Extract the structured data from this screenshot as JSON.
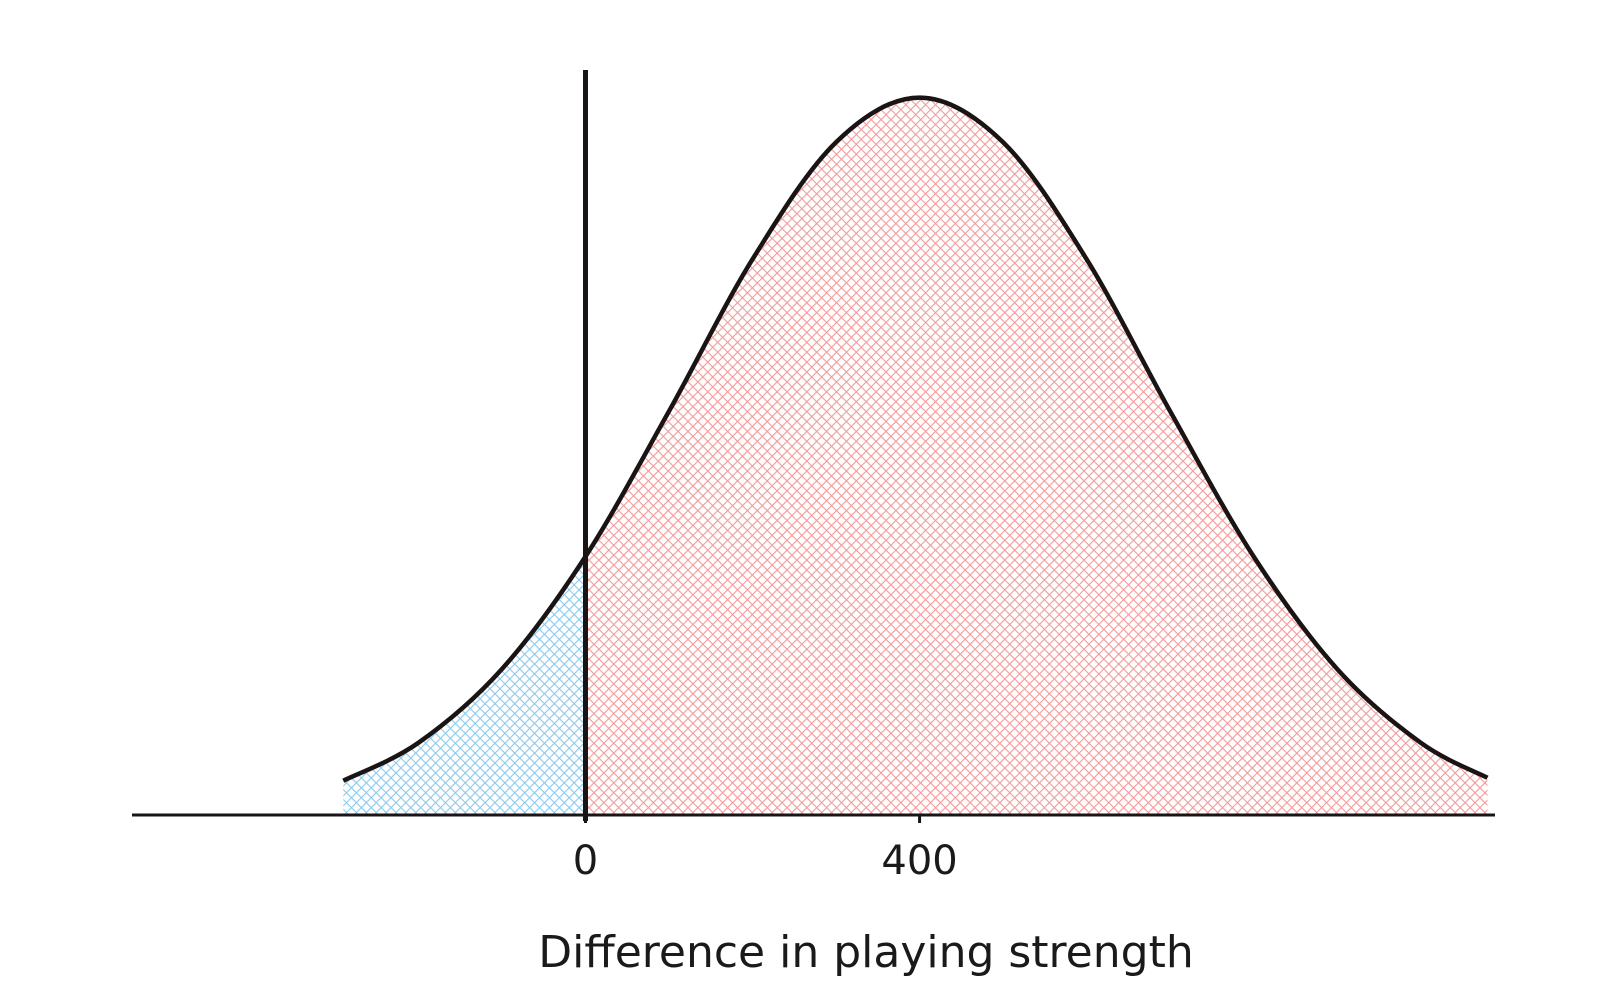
{
  "chart_data": {
    "type": "area",
    "x_label": "Difference in playing strength",
    "x": [
      -290,
      -200,
      -100,
      0,
      100,
      200,
      300,
      400,
      500,
      600,
      700,
      800,
      900,
      1000,
      1080
    ],
    "values": [
      0.046,
      0.097,
      0.196,
      0.347,
      0.542,
      0.746,
      0.903,
      0.963,
      0.903,
      0.746,
      0.542,
      0.347,
      0.196,
      0.097,
      0.05
    ],
    "vline": 0,
    "fill_colors": [
      "#8cc8ec",
      "#f29a9a"
    ],
    "line_color": "#1a1414",
    "xlim": [
      -543,
      1089
    ],
    "xticks": [
      0,
      400
    ],
    "ylim": [
      0,
      1
    ]
  }
}
